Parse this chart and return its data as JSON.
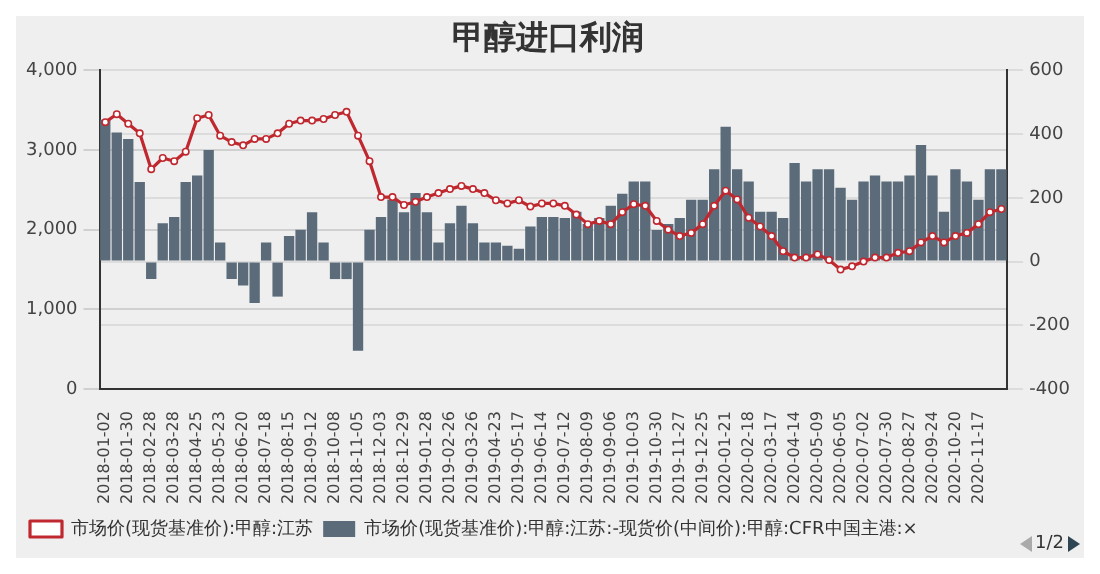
{
  "chart_data": {
    "type": "line",
    "title": "甲醇进口利润",
    "categories": [
      "2018-01-02",
      null,
      "2018-01-30",
      null,
      "2018-02-28",
      null,
      "2018-03-28",
      null,
      "2018-04-25",
      null,
      "2018-05-23",
      null,
      "2018-06-20",
      null,
      "2018-07-18",
      null,
      "2018-08-15",
      null,
      "2018-09-12",
      null,
      "2018-10-08",
      null,
      "2018-11-05",
      null,
      "2018-12-03",
      null,
      "2018-12-29",
      null,
      "2019-01-28",
      null,
      "2019-02-26",
      null,
      "2019-03-26",
      null,
      "2019-04-23",
      null,
      "2019-05-17",
      null,
      "2019-06-14",
      null,
      "2019-07-12",
      null,
      "2019-08-09",
      null,
      "2019-09-06",
      null,
      "2019-10-03",
      null,
      "2019-10-30",
      null,
      "2019-11-27",
      null,
      "2019-12-25",
      null,
      "2020-01-21",
      null,
      "2020-02-18",
      null,
      "2020-03-17",
      null,
      "2020-04-14",
      null,
      "2020-05-09",
      null,
      "2020-06-05",
      null,
      "2020-07-02",
      null,
      "2020-07-30",
      null,
      "2020-08-27",
      null,
      "2020-09-24",
      null,
      "2020-10-20",
      null,
      "2020-11-17",
      null,
      null
    ],
    "series": [
      {
        "name": "市场价(现货基准价):甲醇:江苏",
        "color": "#c0282f",
        "values": [
          3350,
          3450,
          3330,
          3210,
          2760,
          2900,
          2860,
          2980,
          3400,
          3440,
          3180,
          3100,
          3060,
          3140,
          3140,
          3210,
          3330,
          3370,
          3370,
          3390,
          3440,
          3480,
          3180,
          2860,
          2410,
          2410,
          2310,
          2350,
          2410,
          2460,
          2510,
          2550,
          2510,
          2460,
          2370,
          2330,
          2370,
          2290,
          2330,
          2330,
          2300,
          2190,
          2070,
          2110,
          2070,
          2220,
          2320,
          2300,
          2110,
          2000,
          1920,
          1960,
          2070,
          2300,
          2490,
          2380,
          2150,
          2040,
          1920,
          1730,
          1650,
          1650,
          1690,
          1620,
          1500,
          1540,
          1600,
          1650,
          1650,
          1710,
          1730,
          1840,
          1920,
          1840,
          1920,
          1960,
          2070,
          2220,
          2260
        ]
      },
      {
        "name": "市场价(现货基准价):甲醇:江苏:-现货价(中间价):甲醇:CFR中国主港:×",
        "type": "bar",
        "axis": "y2",
        "color": "#5b6b7a",
        "values": [
          445,
          405,
          385,
          250,
          -55,
          120,
          140,
          250,
          270,
          350,
          60,
          -55,
          -75,
          -130,
          60,
          -110,
          80,
          100,
          155,
          60,
          -55,
          -55,
          -280,
          100,
          140,
          195,
          155,
          215,
          155,
          60,
          120,
          175,
          120,
          60,
          60,
          50,
          40,
          110,
          140,
          140,
          137,
          156,
          118,
          137,
          175,
          213,
          251,
          251,
          99,
          118,
          137,
          194,
          194,
          290,
          423,
          290,
          251,
          156,
          156,
          137,
          309,
          251,
          290,
          290,
          232,
          194,
          251,
          270,
          251,
          251,
          270,
          366,
          270,
          156,
          290,
          251,
          194,
          290,
          290
        ]
      }
    ],
    "ylim": [
      0,
      4000
    ],
    "yticks": [
      0,
      {
        "value": 1000,
        "label": "1,000"
      },
      {
        "value": 2000,
        "label": "2,000"
      },
      {
        "value": 3000,
        "label": "3,000"
      },
      {
        "value": 4000,
        "label": "4,000"
      }
    ],
    "y2lim": [
      -400,
      600
    ],
    "y2ticks": [
      -400,
      -200,
      0,
      200,
      400,
      600
    ],
    "grid": "y",
    "legend": "bottom",
    "marker": "circle",
    "line_style": "solid",
    "annotations": [
      "1/2"
    ]
  }
}
